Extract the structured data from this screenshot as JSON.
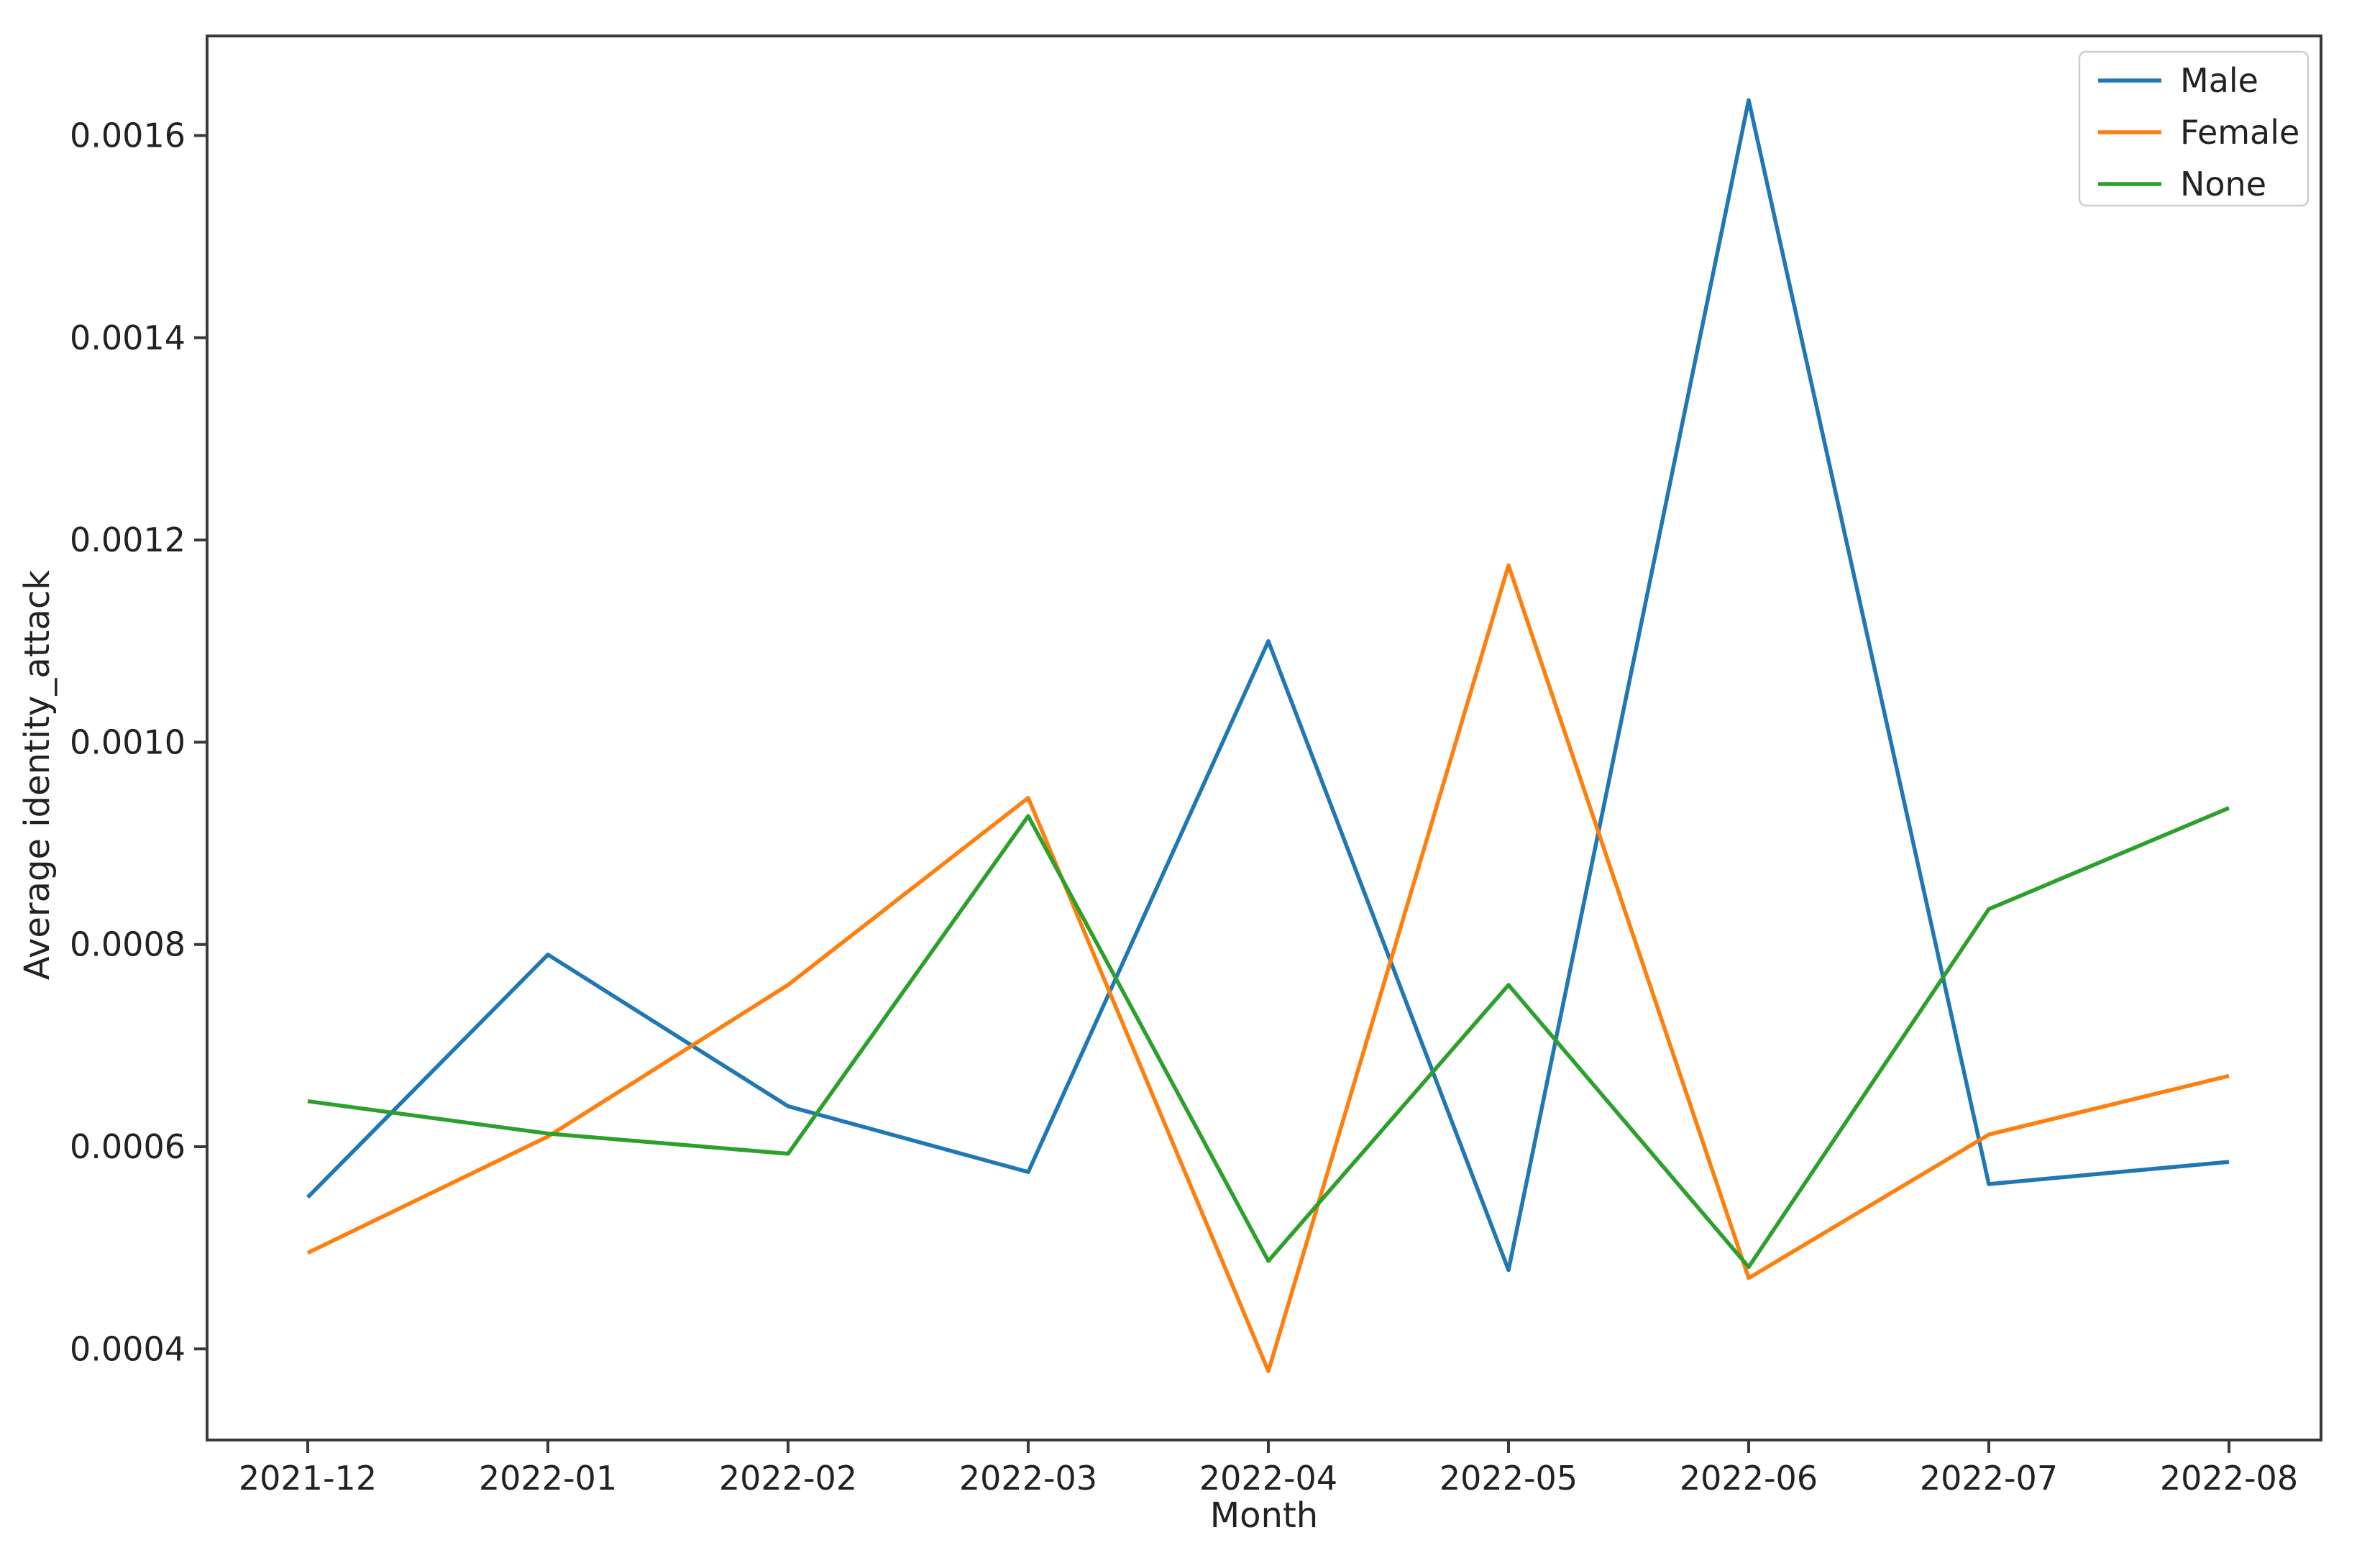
{
  "figure": {
    "background": "#ffffff",
    "text_color": "#222222",
    "spine_color": "#3a3a3a"
  },
  "chart_data": {
    "type": "line",
    "title": "",
    "xlabel": "Month",
    "ylabel": "Average identity_attack",
    "categories": [
      "2021-12",
      "2022-01",
      "2022-02",
      "2022-03",
      "2022-04",
      "2022-05",
      "2022-06",
      "2022-07",
      "2022-08"
    ],
    "y_ticks": [
      0.0004,
      0.0006,
      0.0008,
      0.001,
      0.0012,
      0.0014,
      0.0016
    ],
    "y_tick_labels": [
      "0.0004",
      "0.0006",
      "0.0008",
      "0.0010",
      "0.0012",
      "0.0014",
      "0.0016"
    ],
    "ylim": [
      0.00031,
      0.0016985
    ],
    "grid": false,
    "legend": {
      "position": "upper right",
      "entries": [
        "Male",
        "Female",
        "None"
      ]
    },
    "series": [
      {
        "name": "Male",
        "color": "#1f77b4",
        "values": [
          0.00055,
          0.00079,
          0.00064,
          0.000575,
          0.0011,
          0.000478,
          0.001635,
          0.000563,
          0.000585
        ]
      },
      {
        "name": "Female",
        "color": "#ff7f0e",
        "values": [
          0.000495,
          0.00061,
          0.00076,
          0.000945,
          0.000378,
          0.001175,
          0.00047,
          0.000612,
          0.00067
        ]
      },
      {
        "name": "None",
        "color": "#2ca02c",
        "values": [
          0.000645,
          0.000613,
          0.000593,
          0.000927,
          0.000487,
          0.00076,
          0.000481,
          0.000835,
          0.000935
        ]
      }
    ]
  }
}
